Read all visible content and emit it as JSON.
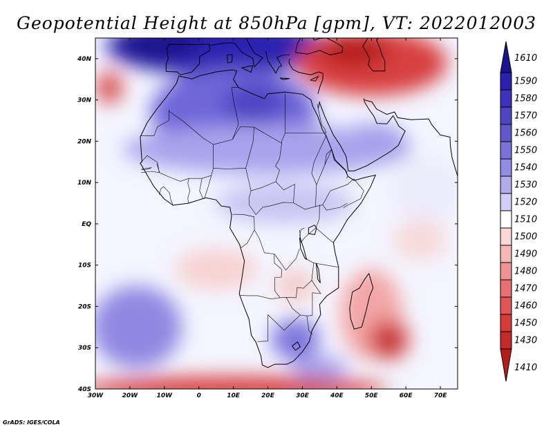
{
  "title": "Geopotential Height at 850hPa [gpm], VT: 2022012003",
  "credit": "GrADS: IGES/COLA",
  "map": {
    "projection": "latlon",
    "lon_range": [
      -30,
      75
    ],
    "lat_range": [
      -40,
      45
    ],
    "lon_ticks": [
      {
        "value": -30,
        "label": "30W"
      },
      {
        "value": -20,
        "label": "20W"
      },
      {
        "value": -10,
        "label": "10W"
      },
      {
        "value": 0,
        "label": "0"
      },
      {
        "value": 10,
        "label": "10E"
      },
      {
        "value": 20,
        "label": "20E"
      },
      {
        "value": 30,
        "label": "30E"
      },
      {
        "value": 40,
        "label": "40E"
      },
      {
        "value": 50,
        "label": "50E"
      },
      {
        "value": 60,
        "label": "60E"
      },
      {
        "value": 70,
        "label": "70E"
      }
    ],
    "lat_ticks": [
      {
        "value": 40,
        "label": "40N"
      },
      {
        "value": 30,
        "label": "30N"
      },
      {
        "value": 20,
        "label": "20N"
      },
      {
        "value": 10,
        "label": "10N"
      },
      {
        "value": 0,
        "label": "EQ"
      },
      {
        "value": -10,
        "label": "10S"
      },
      {
        "value": -20,
        "label": "20S"
      },
      {
        "value": -30,
        "label": "30S"
      },
      {
        "value": -40,
        "label": "40S"
      }
    ],
    "field_background": "#f4f5ff",
    "field_features": [
      {
        "name": "north-high-band",
        "lon": 5,
        "lat": 43,
        "rx": 32,
        "ry": 7,
        "color": "#2a20b0"
      },
      {
        "name": "northwest-high",
        "lon": -12,
        "lat": 44,
        "rx": 12,
        "ry": 5,
        "color": "#1a128e"
      },
      {
        "name": "sahara-high",
        "lon": 10,
        "lat": 27,
        "rx": 24,
        "ry": 11,
        "color": "#6f66d8"
      },
      {
        "name": "sahara-core",
        "lon": 16,
        "lat": 29,
        "rx": 9,
        "ry": 5,
        "color": "#4f45c4"
      },
      {
        "name": "atlantic-west-trough",
        "lon": -26,
        "lat": 33,
        "rx": 4,
        "ry": 4,
        "color": "#e06060"
      },
      {
        "name": "atlantic-west-core",
        "lon": -25.5,
        "lat": 32.5,
        "rx": 2,
        "ry": 2,
        "color": "#c53535"
      },
      {
        "name": "middle-east-low",
        "lon": 50,
        "lat": 39,
        "rx": 22,
        "ry": 8,
        "color": "#d84040"
      },
      {
        "name": "middle-east-core",
        "lon": 45,
        "lat": 42,
        "rx": 10,
        "ry": 4,
        "color": "#b71c1c"
      },
      {
        "name": "arabia-blue",
        "lon": 50,
        "lat": 20,
        "rx": 10,
        "ry": 4,
        "color": "#8d86e2"
      },
      {
        "name": "subtropic-band",
        "lon": 20,
        "lat": 18,
        "rx": 42,
        "ry": 6,
        "color": "#a9a3ec"
      },
      {
        "name": "equator-band",
        "lon": 25,
        "lat": 5,
        "rx": 20,
        "ry": 5,
        "color": "#c8c5f3"
      },
      {
        "name": "madagascar-low",
        "lon": 50,
        "lat": -22,
        "rx": 9,
        "ry": 11,
        "color": "#f2a6a6"
      },
      {
        "name": "southern-low",
        "lon": 55,
        "lat": -28,
        "rx": 6,
        "ry": 5,
        "color": "#d85050"
      },
      {
        "name": "southern-low-core",
        "lon": 55,
        "lat": -28.5,
        "rx": 3,
        "ry": 2.5,
        "color": "#b82828"
      },
      {
        "name": "central-pink",
        "lon": 5,
        "lat": -11,
        "rx": 12,
        "ry": 5,
        "color": "#f7d2d2"
      },
      {
        "name": "zambia-pink",
        "lon": 28,
        "lat": -15,
        "rx": 6,
        "ry": 4,
        "color": "#f5cccc"
      },
      {
        "name": "southeast-atlantic-blue",
        "lon": -18,
        "lat": -25,
        "rx": 13,
        "ry": 10,
        "color": "#8f88e2"
      },
      {
        "name": "south-africa-blue",
        "lon": 28,
        "lat": -28,
        "rx": 7,
        "ry": 5,
        "color": "#7d76dc"
      },
      {
        "name": "agulhas-blue",
        "lon": 35,
        "lat": -35,
        "rx": 8,
        "ry": 3,
        "color": "#a6a0ec"
      },
      {
        "name": "south-band-low",
        "lon": 10,
        "lat": -40,
        "rx": 45,
        "ry": 3,
        "color": "#d63a3a"
      },
      {
        "name": "arabian-sea-white",
        "lon": 66,
        "lat": 8,
        "rx": 10,
        "ry": 8,
        "color": "#ecebfb"
      },
      {
        "name": "indian-ocean-pink",
        "lon": 64,
        "lat": -4,
        "rx": 8,
        "ry": 5,
        "color": "#f7dada"
      }
    ]
  },
  "colorbar": {
    "levels": [
      {
        "label": "1610",
        "color": "#1a128e"
      },
      {
        "label": "1590",
        "color": "#2a20b0"
      },
      {
        "label": "1580",
        "color": "#3c32bd"
      },
      {
        "label": "1570",
        "color": "#4f45c4"
      },
      {
        "label": "1560",
        "color": "#6158cd"
      },
      {
        "label": "1550",
        "color": "#7a72d9"
      },
      {
        "label": "1540",
        "color": "#938ce3"
      },
      {
        "label": "1530",
        "color": "#b1acee"
      },
      {
        "label": "1520",
        "color": "#d2cff6"
      },
      {
        "label": "1510",
        "color": "#ffffff"
      },
      {
        "label": "1500",
        "color": "#fad6d6"
      },
      {
        "label": "1490",
        "color": "#f5b6b6"
      },
      {
        "label": "1480",
        "color": "#ef9494"
      },
      {
        "label": "1470",
        "color": "#e87070"
      },
      {
        "label": "1460",
        "color": "#e05555"
      },
      {
        "label": "1450",
        "color": "#d63a3a"
      },
      {
        "label": "1430",
        "color": "#c52a2a"
      },
      {
        "label": "1410",
        "color": "#b71c1c"
      }
    ]
  }
}
